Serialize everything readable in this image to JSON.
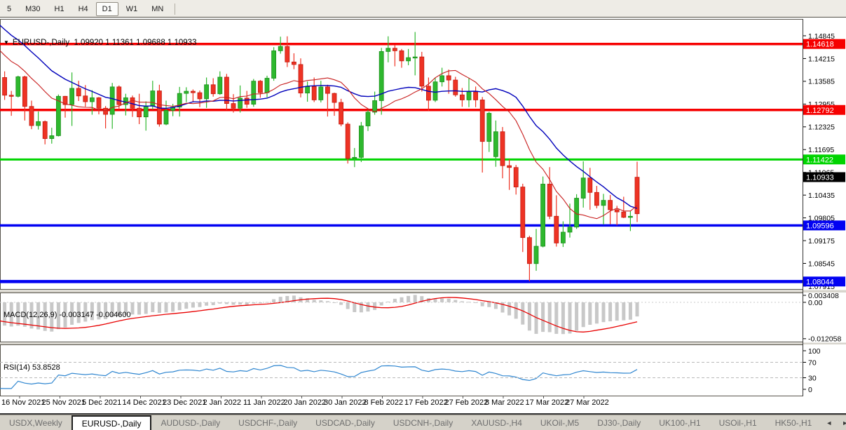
{
  "toolbar": {
    "buttons": [
      "5",
      "M30",
      "H1",
      "H4",
      "D1",
      "W1",
      "MN"
    ],
    "active": "D1"
  },
  "header": {
    "arrow": "▼",
    "symbol": "EURUSD-,Daily",
    "ohlc": "1.09920 1.11361 1.09688 1.10933"
  },
  "indicators": {
    "macd": {
      "name": "MACD(12,26,9)",
      "values": "-0.003147 -0.004600",
      "axis": [
        "0.003408",
        "0.00",
        "-0.012058"
      ],
      "axis_values": [
        0.003408,
        0,
        -0.012058
      ]
    },
    "rsi": {
      "name": "RSI(14)",
      "value": "53.8528",
      "axis": [
        "100",
        "70",
        "30",
        "0"
      ],
      "axis_values": [
        100,
        70,
        30,
        0
      ],
      "guide_levels": [
        70,
        30
      ]
    }
  },
  "chart_data": {
    "type": "candlestick",
    "title": "EURUSD-,Daily",
    "ohlc_display": [
      1.0992,
      1.11361,
      1.09688,
      1.10933
    ],
    "y_axis_ticks": [
      "1.14845",
      "1.14215",
      "1.13585",
      "1.12955",
      "1.12325",
      "1.11695",
      "1.11065",
      "1.10435",
      "1.09805",
      "1.09175",
      "1.08545",
      "1.07915"
    ],
    "x_axis_labels": [
      "16 Nov 2021",
      "25 Nov 2021",
      "5 Dec 2021",
      "14 Dec 2021",
      "23 Dec 2021",
      "2 Jan 2022",
      "11 Jan 2022",
      "20 Jan 2022",
      "30 Jan 2022",
      "8 Feb 2022",
      "17 Feb 2022",
      "27 Feb 2022",
      "8 Mar 2022",
      "17 Mar 2022",
      "27 Mar 2022"
    ],
    "levels": [
      {
        "price": 1.14618,
        "label": "1.14618",
        "color": "#f60000"
      },
      {
        "price": 1.12792,
        "label": "1.12792",
        "color": "#f60000"
      },
      {
        "price": 1.11422,
        "label": "1.11422",
        "color": "#00d400"
      },
      {
        "price": 1.09596,
        "label": "1.09596",
        "color": "#0202f2"
      },
      {
        "price": 1.08044,
        "label": "1.08044",
        "color": "#0202f2"
      }
    ],
    "current_price": {
      "price": 1.10933,
      "label": "1.10933",
      "color": "#000000"
    },
    "colors": {
      "bull": "#2eb82e",
      "bull_edge": "#1d8f1d",
      "bear": "#ee3324",
      "bear_edge": "#c21a10",
      "ma_fast": "#c81e1e",
      "ma_slow": "#0000bb",
      "macd_bar": "#c8c8c8",
      "macd_signal": "#e80000",
      "rsi_line": "#2f86d0"
    },
    "ma_periods": {
      "fast": 12,
      "slow": 21
    },
    "warmup_closes": [
      1.169,
      1.1672,
      1.1655,
      1.1638,
      1.1621,
      1.1605,
      1.159,
      1.1576,
      1.1585,
      1.1563,
      1.1542,
      1.1522,
      1.1503,
      1.1485,
      1.1468,
      1.1452,
      1.1437,
      1.1423,
      1.141,
      1.1396,
      1.138
    ],
    "candles": [
      [
        1.131,
        1.1382,
        1.1295,
        1.137
      ],
      [
        1.1369,
        1.1386,
        1.1307,
        1.132
      ],
      [
        1.132,
        1.1332,
        1.1263,
        1.1317
      ],
      [
        1.1317,
        1.1374,
        1.1314,
        1.1371
      ],
      [
        1.1371,
        1.1374,
        1.125,
        1.1289
      ],
      [
        1.1289,
        1.1305,
        1.1226,
        1.1236
      ],
      [
        1.1236,
        1.1275,
        1.1225,
        1.1247
      ],
      [
        1.1247,
        1.125,
        1.1184,
        1.12
      ],
      [
        1.12,
        1.123,
        1.1186,
        1.1208
      ],
      [
        1.1208,
        1.1322,
        1.1206,
        1.1317
      ],
      [
        1.1317,
        1.1318,
        1.1258,
        1.1294
      ],
      [
        1.1294,
        1.1383,
        1.1235,
        1.1339
      ],
      [
        1.1339,
        1.136,
        1.1304,
        1.1318
      ],
      [
        1.1318,
        1.1348,
        1.1288,
        1.1302
      ],
      [
        1.1302,
        1.1334,
        1.1266,
        1.1313
      ],
      [
        1.1313,
        1.1315,
        1.1267,
        1.1284
      ],
      [
        1.1284,
        1.129,
        1.1228,
        1.1267
      ],
      [
        1.1267,
        1.1354,
        1.1227,
        1.1343
      ],
      [
        1.1343,
        1.1347,
        1.128,
        1.1294
      ],
      [
        1.1294,
        1.1324,
        1.1264,
        1.1313
      ],
      [
        1.1313,
        1.1319,
        1.126,
        1.1284
      ],
      [
        1.1284,
        1.1324,
        1.124,
        1.126
      ],
      [
        1.126,
        1.1303,
        1.1222,
        1.129
      ],
      [
        1.129,
        1.136,
        1.128,
        1.1332
      ],
      [
        1.1332,
        1.1349,
        1.1233,
        1.124
      ],
      [
        1.124,
        1.1305,
        1.1237,
        1.1278
      ],
      [
        1.1278,
        1.1296,
        1.1262,
        1.1287
      ],
      [
        1.1287,
        1.1343,
        1.1261,
        1.1325
      ],
      [
        1.1325,
        1.1342,
        1.1301,
        1.1331
      ],
      [
        1.1331,
        1.1336,
        1.1303,
        1.1327
      ],
      [
        1.1327,
        1.1333,
        1.1287,
        1.131
      ],
      [
        1.131,
        1.1369,
        1.1285,
        1.1349
      ],
      [
        1.1349,
        1.1367,
        1.1316,
        1.1324
      ],
      [
        1.1324,
        1.1386,
        1.1321,
        1.137
      ],
      [
        1.137,
        1.1379,
        1.1279,
        1.1297
      ],
      [
        1.1297,
        1.1323,
        1.1272,
        1.1284
      ],
      [
        1.1284,
        1.1347,
        1.1272,
        1.1312
      ],
      [
        1.1312,
        1.1332,
        1.1285,
        1.1295
      ],
      [
        1.1295,
        1.1365,
        1.1288,
        1.1359
      ],
      [
        1.1359,
        1.1362,
        1.1313,
        1.1327
      ],
      [
        1.1327,
        1.1374,
        1.1314,
        1.1367
      ],
      [
        1.1367,
        1.1453,
        1.136,
        1.1443
      ],
      [
        1.1443,
        1.1482,
        1.1435,
        1.1455
      ],
      [
        1.1455,
        1.1483,
        1.1398,
        1.1412
      ],
      [
        1.1412,
        1.1436,
        1.1392,
        1.1405
      ],
      [
        1.1405,
        1.1422,
        1.1314,
        1.1326
      ],
      [
        1.1326,
        1.1358,
        1.1302,
        1.1344
      ],
      [
        1.1344,
        1.1369,
        1.1301,
        1.1307
      ],
      [
        1.1307,
        1.136,
        1.13,
        1.1343
      ],
      [
        1.1343,
        1.1349,
        1.1261,
        1.1325
      ],
      [
        1.1325,
        1.1327,
        1.1263,
        1.13
      ],
      [
        1.13,
        1.131,
        1.1234,
        1.124
      ],
      [
        1.124,
        1.1245,
        1.1131,
        1.1145
      ],
      [
        1.1145,
        1.1174,
        1.1121,
        1.1148
      ],
      [
        1.1148,
        1.1246,
        1.1135,
        1.1235
      ],
      [
        1.1235,
        1.1279,
        1.1221,
        1.1273
      ],
      [
        1.1273,
        1.133,
        1.1266,
        1.1305
      ],
      [
        1.1305,
        1.1451,
        1.1266,
        1.1441
      ],
      [
        1.1441,
        1.1483,
        1.1411,
        1.145
      ],
      [
        1.145,
        1.1458,
        1.14,
        1.1443
      ],
      [
        1.1443,
        1.1448,
        1.1396,
        1.1415
      ],
      [
        1.1415,
        1.1448,
        1.1403,
        1.1424
      ],
      [
        1.1424,
        1.1495,
        1.1375,
        1.1426
      ],
      [
        1.1426,
        1.144,
        1.133,
        1.1345
      ],
      [
        1.1345,
        1.1369,
        1.1277,
        1.1306
      ],
      [
        1.1306,
        1.1368,
        1.1301,
        1.1357
      ],
      [
        1.1357,
        1.1396,
        1.1344,
        1.1374
      ],
      [
        1.1374,
        1.1391,
        1.1324,
        1.1362
      ],
      [
        1.1362,
        1.1371,
        1.1316,
        1.1321
      ],
      [
        1.1321,
        1.134,
        1.1288,
        1.1307
      ],
      [
        1.1307,
        1.1368,
        1.1287,
        1.1329
      ],
      [
        1.1329,
        1.1344,
        1.1287,
        1.1307
      ],
      [
        1.1307,
        1.1315,
        1.1106,
        1.1192
      ],
      [
        1.1192,
        1.1274,
        1.1163,
        1.127
      ],
      [
        1.115,
        1.125,
        1.1122,
        1.1219
      ],
      [
        1.1219,
        1.1232,
        1.109,
        1.1125
      ],
      [
        1.1125,
        1.1143,
        1.1058,
        1.112
      ],
      [
        1.112,
        1.1127,
        1.1045,
        1.1066
      ],
      [
        1.1066,
        1.1075,
        1.0886,
        1.0926
      ],
      [
        1.0926,
        1.0931,
        1.0805,
        1.0854
      ],
      [
        1.0854,
        1.095,
        1.0834,
        1.0902
      ],
      [
        1.0902,
        1.1095,
        1.0899,
        1.1074
      ],
      [
        1.1074,
        1.1121,
        1.0977,
        1.0985
      ],
      [
        1.0985,
        1.1043,
        1.0901,
        1.0911
      ],
      [
        1.0911,
        1.0971,
        1.09,
        1.0941
      ],
      [
        1.0941,
        1.102,
        1.0926,
        1.0955
      ],
      [
        1.0955,
        1.1046,
        1.095,
        1.1035
      ],
      [
        1.1035,
        1.1137,
        1.1009,
        1.1091
      ],
      [
        1.1091,
        1.1119,
        1.1003,
        1.1051
      ],
      [
        1.1051,
        1.1069,
        1.1007,
        1.1015
      ],
      [
        1.1015,
        1.1047,
        1.0962,
        1.1029
      ],
      [
        1.1029,
        1.1044,
        1.0963,
        1.1003
      ],
      [
        1.1003,
        1.1014,
        1.096,
        1.0997
      ],
      [
        1.0997,
        1.1039,
        1.098,
        1.0982
      ],
      [
        1.0982,
        1.0999,
        1.0944,
        1.0985
      ],
      [
        1.0992,
        1.1136,
        1.0969,
        1.1093,
        "r"
      ]
    ]
  },
  "tabs": {
    "items": [
      "USDX,Weekly",
      "EURUSD-,Daily",
      "AUDUSD-,Daily",
      "USDCHF-,Daily",
      "USDCAD-,Daily",
      "USDCNH-,Daily",
      "XAUUSD-,H4",
      "UKOil-,M5",
      "DJ30-,Daily",
      "UK100-,H1",
      "USOil-,H1",
      "HK50-,H1"
    ],
    "active_index": 1,
    "nav": [
      "◄",
      "►"
    ]
  }
}
